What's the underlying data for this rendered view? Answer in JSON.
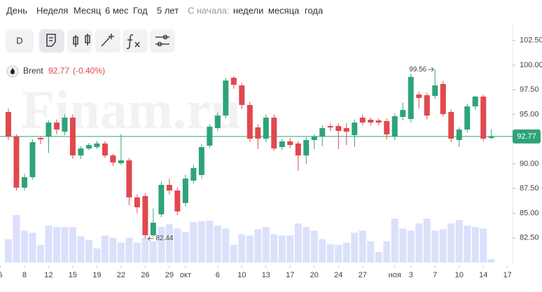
{
  "periods": [
    "День",
    "Неделя",
    "Месяц",
    "6 мес",
    "Год",
    "5 лет"
  ],
  "since_label": "С начала:",
  "since": [
    "недели",
    "месяца",
    "года"
  ],
  "toolbar_button": "D",
  "watermark": "Finam.ru",
  "chart_data": {
    "type": "candlestick",
    "instrument": "Brent",
    "last_price": 92.77,
    "change": "(-0.40%)",
    "high_mark": 99.56,
    "low_mark": 82.44,
    "up_color": "#2ea37a",
    "down_color": "#e0484e",
    "volume_color": "#dbe1fb",
    "ylim": [
      80,
      104.11
    ],
    "yticks": [
      {
        "value": 82.5,
        "label": "82.50"
      },
      {
        "value": 85,
        "label": "85.00"
      },
      {
        "value": 87.5,
        "label": "87.50"
      },
      {
        "value": 90,
        "label": "90.00"
      },
      {
        "value": 92.5,
        "label": "92.50"
      },
      {
        "value": 95,
        "label": "95.00"
      },
      {
        "value": 97.5,
        "label": "97.50"
      },
      {
        "value": 100,
        "label": "100.00"
      },
      {
        "value": 102.5,
        "label": "102.50"
      }
    ],
    "xlim": [
      -1.04,
      62.2
    ],
    "xticks": [
      {
        "value": -1,
        "label": "5"
      },
      {
        "value": 2,
        "label": "8"
      },
      {
        "value": 5,
        "label": "12"
      },
      {
        "value": 8,
        "label": "15"
      },
      {
        "value": 11,
        "label": "19"
      },
      {
        "value": 14,
        "label": "22"
      },
      {
        "value": 17,
        "label": "26"
      },
      {
        "value": 20,
        "label": "29"
      },
      {
        "value": 22,
        "label": "окт"
      },
      {
        "value": 26,
        "label": "6"
      },
      {
        "value": 29,
        "label": "10"
      },
      {
        "value": 32,
        "label": "13"
      },
      {
        "value": 35,
        "label": "17"
      },
      {
        "value": 38,
        "label": "20"
      },
      {
        "value": 41,
        "label": "24"
      },
      {
        "value": 44,
        "label": "27"
      },
      {
        "value": 48,
        "label": "ноя"
      },
      {
        "value": 50,
        "label": "3"
      },
      {
        "value": 53,
        "label": "7"
      },
      {
        "value": 56,
        "label": "10"
      },
      {
        "value": 59,
        "label": "14"
      },
      {
        "value": 62,
        "label": "17"
      }
    ],
    "open": [
      95.25,
      92.77,
      87.59,
      88.65,
      92.62,
      92.77,
      94.18,
      93.26,
      94.68,
      90.85,
      91.56,
      91.7,
      92.06,
      90.85,
      90.07,
      90.35,
      86.6,
      86.74,
      82.77,
      84.89,
      87.87,
      87.3,
      86.03,
      88.3,
      88.87,
      91.84,
      93.62,
      94.89,
      98.72,
      97.94,
      95.96,
      93.69,
      92.55,
      94.68,
      91.7,
      92.27,
      92.06,
      90.85,
      92.41,
      92.77,
      93.83,
      93.83,
      93.62,
      92.91,
      94.68,
      94.47,
      94.4,
      94.33,
      92.77,
      94.75,
      94.54,
      97.02,
      96.95,
      96.88,
      98.09,
      95.25,
      92.41,
      93.48,
      95.82,
      96.81,
      92.62
    ],
    "high": [
      95.6,
      93.0,
      89.0,
      92.5,
      92.8,
      94.4,
      94.5,
      95.0,
      95.0,
      91.8,
      92.1,
      92.3,
      92.3,
      91.0,
      93.0,
      90.6,
      86.9,
      87.0,
      85.5,
      88.2,
      88.5,
      87.6,
      88.9,
      89.9,
      92.0,
      94.0,
      95.2,
      98.7,
      98.9,
      98.2,
      96.3,
      94.0,
      95.0,
      95.0,
      92.5,
      92.6,
      92.3,
      92.7,
      93.0,
      93.9,
      94.1,
      94.1,
      94.1,
      94.5,
      95.0,
      94.7,
      94.6,
      94.6,
      95.1,
      96.2,
      99.1,
      97.3,
      97.2,
      99.56,
      98.4,
      95.5,
      93.7,
      96.1,
      96.9,
      97.0,
      93.5
    ],
    "low": [
      92.4,
      87.3,
      87.3,
      88.4,
      92.0,
      91.1,
      93.0,
      92.9,
      90.5,
      90.5,
      91.4,
      91.5,
      90.6,
      89.8,
      89.9,
      85.8,
      85.0,
      82.44,
      82.6,
      84.6,
      86.9,
      84.8,
      85.7,
      88.0,
      88.5,
      91.6,
      93.3,
      94.6,
      97.6,
      95.6,
      92.2,
      91.5,
      92.2,
      91.3,
      91.4,
      91.6,
      89.3,
      90.0,
      91.5,
      91.8,
      93.3,
      91.5,
      91.9,
      91.7,
      93.9,
      93.9,
      93.9,
      92.5,
      92.4,
      94.4,
      94.2,
      95.6,
      94.5,
      96.6,
      94.8,
      92.2,
      91.7,
      93.2,
      95.5,
      92.3,
      92.5
    ],
    "close": [
      92.77,
      87.59,
      88.65,
      92.2,
      92.48,
      94.18,
      93.48,
      94.68,
      90.85,
      91.56,
      91.91,
      92.06,
      90.85,
      90.14,
      90.35,
      86.6,
      85.6,
      82.77,
      84.04,
      87.87,
      87.3,
      85.18,
      88.51,
      89.57,
      91.7,
      93.76,
      94.89,
      98.44,
      98.0,
      95.96,
      92.55,
      92.55,
      94.68,
      91.56,
      92.27,
      91.91,
      90.85,
      92.41,
      92.77,
      93.62,
      93.69,
      93.33,
      93.26,
      94.18,
      94.18,
      94.18,
      94.18,
      92.98,
      94.82,
      95.46,
      98.8,
      96.67,
      94.89,
      97.94,
      95.04,
      92.55,
      93.48,
      95.82,
      96.81,
      92.55,
      92.77
    ],
    "volumes": [
      33,
      67,
      45,
      42,
      25,
      52,
      50,
      50,
      50,
      37,
      32,
      20,
      38,
      35,
      28,
      35,
      28,
      35,
      30,
      50,
      54,
      48,
      43,
      57,
      58,
      59,
      52,
      48,
      25,
      40,
      38,
      47,
      50,
      40,
      38,
      38,
      55,
      50,
      45,
      33,
      26,
      25,
      28,
      42,
      45,
      30,
      15,
      30,
      62,
      48,
      45,
      55,
      62,
      45,
      47,
      55,
      60,
      52,
      50,
      48,
      5
    ]
  }
}
